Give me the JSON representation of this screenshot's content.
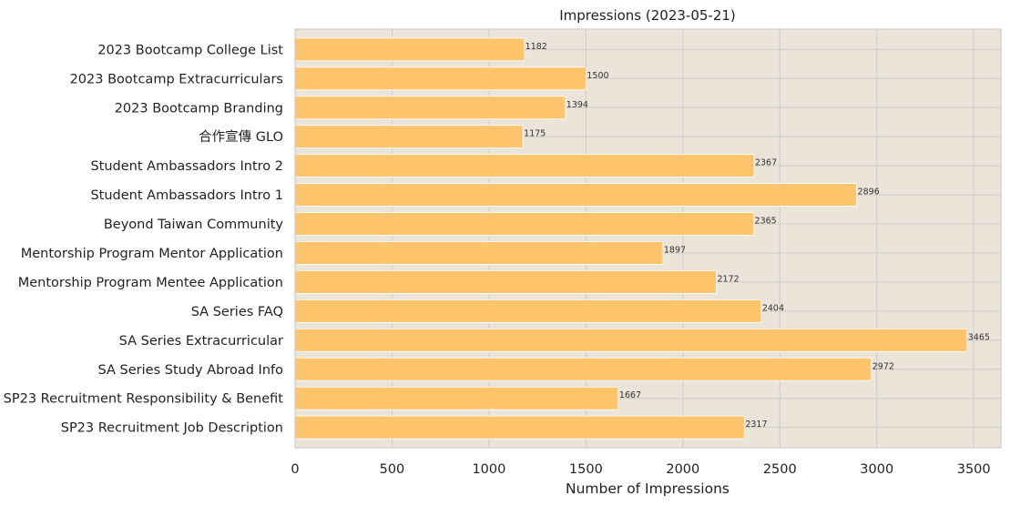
{
  "chart_data": {
    "type": "bar",
    "orientation": "horizontal",
    "title": "Impressions (2023-05-21)",
    "xlabel": "Number of Impressions",
    "ylabel": "",
    "xlim": [
      0,
      3640
    ],
    "xticks": [
      0,
      500,
      1000,
      1500,
      2000,
      2500,
      3000,
      3500
    ],
    "grid": true,
    "colors": {
      "bar": "#ffc46c",
      "plot_bg": "#ebe4d8",
      "grid": "#cccccc",
      "axis": "#cccccc"
    },
    "categories": [
      "2023 Bootcamp College List",
      "2023 Bootcamp Extracurriculars",
      "2023 Bootcamp Branding",
      "合作宣傳 GLO",
      "Student Ambassadors Intro 2",
      "Student Ambassadors Intro 1",
      "Beyond Taiwan Community",
      "Mentorship Program Mentor Application",
      "Mentorship Program Mentee Application",
      "SA Series FAQ",
      "SA Series Extracurricular",
      "SA Series Study Abroad Info",
      "SP23 Recruitment Responsibility & Benefit",
      "SP23 Recruitment Job Description"
    ],
    "values": [
      1182,
      1500,
      1394,
      1175,
      2367,
      2896,
      2365,
      1897,
      2172,
      2404,
      3465,
      2972,
      1667,
      2317
    ]
  }
}
